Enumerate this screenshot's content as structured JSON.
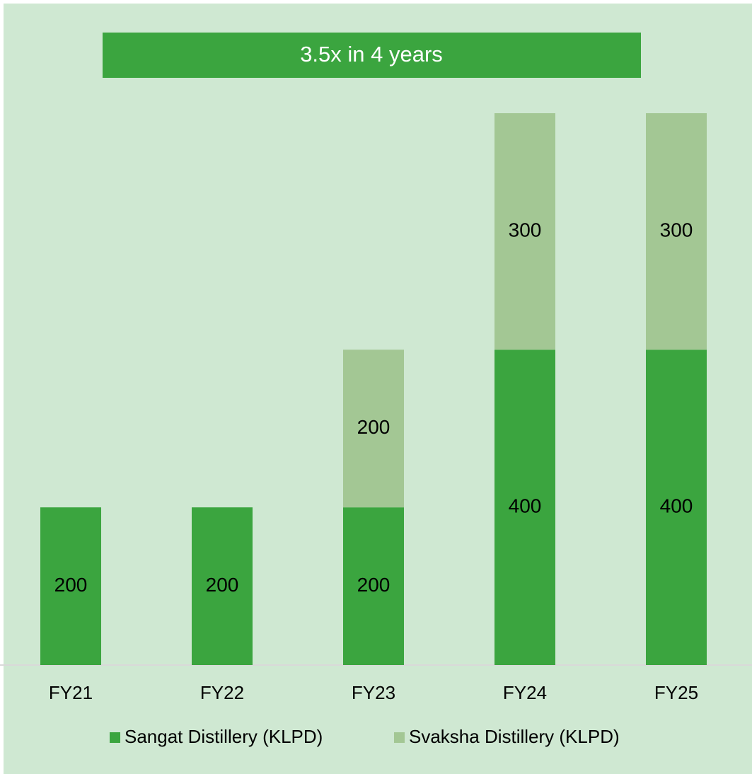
{
  "chart_data": {
    "type": "stacked-bar",
    "title": "3.5x in 4 years",
    "categories": [
      "FY21",
      "FY22",
      "FY23",
      "FY24",
      "FY25"
    ],
    "series": [
      {
        "name": "Sangat Distillery (KLPD)",
        "color": "#3ba53f",
        "values": [
          200,
          200,
          200,
          400,
          400
        ]
      },
      {
        "name": "Svaksha Distillery (KLPD)",
        "color": "#a3c794",
        "values": [
          null,
          null,
          200,
          300,
          300
        ]
      }
    ],
    "ylim": [
      0,
      700
    ]
  }
}
